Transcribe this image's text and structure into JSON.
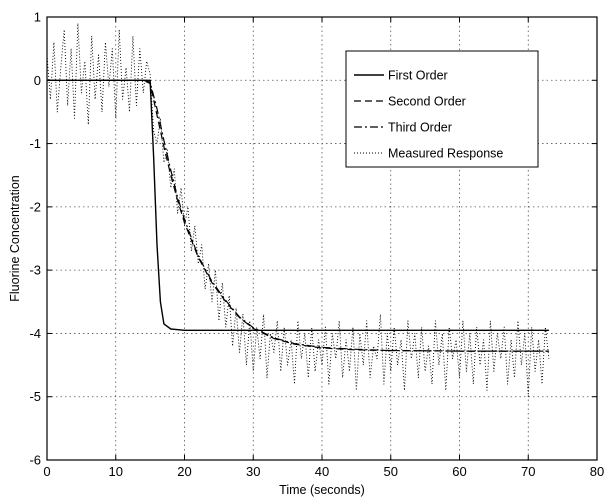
{
  "chart_data": {
    "type": "line",
    "title": "",
    "xlabel": "Time (seconds)",
    "ylabel": "Fluorine Concentration",
    "xlim": [
      0,
      80
    ],
    "ylim": [
      -6,
      1
    ],
    "xticks": [
      0,
      10,
      20,
      30,
      40,
      50,
      60,
      70,
      80
    ],
    "yticks": [
      -6,
      -5,
      -4,
      -3,
      -2,
      -1,
      0,
      1
    ],
    "x_tick_labels": [
      "0",
      "10",
      "20",
      "30",
      "40",
      "50",
      "60",
      "70",
      "80"
    ],
    "y_tick_labels": [
      "-6",
      "-5",
      "-4",
      "-3",
      "-2",
      "-1",
      "0",
      "1"
    ],
    "grid": true,
    "legend_position": "top-right",
    "series": [
      {
        "name": "First Order",
        "style": "solid",
        "x": [
          0,
          14,
          15,
          15.5,
          16,
          16.5,
          17,
          18,
          20,
          25,
          30,
          40,
          50,
          60,
          70,
          73
        ],
        "y": [
          0,
          0,
          0,
          -1.2,
          -2.6,
          -3.5,
          -3.85,
          -3.93,
          -3.95,
          -3.95,
          -3.95,
          -3.95,
          -3.95,
          -3.95,
          -3.95,
          -3.95
        ]
      },
      {
        "name": "Second Order",
        "style": "dashed",
        "x": [
          0,
          14,
          15,
          16,
          17,
          18,
          19,
          20,
          22,
          24,
          26,
          28,
          30,
          33,
          36,
          40,
          45,
          50,
          60,
          70,
          73
        ],
        "y": [
          0,
          0,
          -0.05,
          -0.55,
          -1.05,
          -1.5,
          -1.9,
          -2.25,
          -2.8,
          -3.2,
          -3.5,
          -3.75,
          -3.92,
          -4.08,
          -4.17,
          -4.23,
          -4.26,
          -4.27,
          -4.28,
          -4.28,
          -4.28
        ]
      },
      {
        "name": "Third Order",
        "style": "dashdot",
        "x": [
          0,
          14,
          15,
          16,
          17,
          18,
          19,
          20,
          22,
          24,
          26,
          28,
          30,
          33,
          36,
          40,
          45,
          50,
          60,
          70,
          73
        ],
        "y": [
          0,
          0,
          -0.03,
          -0.45,
          -0.95,
          -1.42,
          -1.85,
          -2.2,
          -2.78,
          -3.18,
          -3.48,
          -3.74,
          -3.91,
          -4.07,
          -4.16,
          -4.22,
          -4.25,
          -4.27,
          -4.28,
          -4.28,
          -4.28
        ]
      },
      {
        "name": "Measured Response",
        "style": "dotted",
        "x": [
          0,
          0.5,
          1,
          1.5,
          2,
          2.5,
          3,
          3.5,
          4,
          4.5,
          5,
          5.5,
          6,
          6.5,
          7,
          7.5,
          8,
          8.5,
          9,
          9.5,
          10,
          10.5,
          11,
          11.5,
          12,
          12.5,
          13,
          13.5,
          14,
          14.5,
          15,
          15.5,
          16,
          16.5,
          17,
          17.5,
          18,
          18.5,
          19,
          19.5,
          20,
          20.5,
          21,
          21.5,
          22,
          22.5,
          23,
          23.5,
          24,
          24.5,
          25,
          25.5,
          26,
          26.5,
          27,
          27.5,
          28,
          28.5,
          29,
          29.5,
          30,
          30.5,
          31,
          31.5,
          32,
          32.5,
          33,
          33.5,
          34,
          34.5,
          35,
          35.5,
          36,
          36.5,
          37,
          37.5,
          38,
          38.5,
          39,
          39.5,
          40,
          40.5,
          41,
          41.5,
          42,
          42.5,
          43,
          43.5,
          44,
          44.5,
          45,
          45.5,
          46,
          46.5,
          47,
          47.5,
          48,
          48.5,
          49,
          49.5,
          50,
          50.5,
          51,
          51.5,
          52,
          52.5,
          53,
          53.5,
          54,
          54.5,
          55,
          55.5,
          56,
          56.5,
          57,
          57.5,
          58,
          58.5,
          59,
          59.5,
          60,
          60.5,
          61,
          61.5,
          62,
          62.5,
          63,
          63.5,
          64,
          64.5,
          65,
          65.5,
          66,
          66.5,
          67,
          67.5,
          68,
          68.5,
          69,
          69.5,
          70,
          70.5,
          71,
          71.5,
          72,
          72.5,
          73
        ],
        "y": [
          0.4,
          -0.3,
          0.6,
          -0.5,
          0.2,
          0.8,
          -0.4,
          0.5,
          -0.6,
          0.9,
          -0.2,
          0.3,
          -0.7,
          0.7,
          -0.3,
          0.4,
          -0.5,
          0.6,
          -0.1,
          0.5,
          -0.6,
          0.8,
          -0.3,
          0.2,
          -0.5,
          0.7,
          -0.4,
          0.5,
          -0.2,
          0.3,
          0.1,
          -0.8,
          -1.0,
          -0.6,
          -1.3,
          -1.1,
          -1.7,
          -1.4,
          -2.1,
          -1.7,
          -2.3,
          -2.0,
          -2.7,
          -2.3,
          -2.9,
          -2.6,
          -3.3,
          -2.9,
          -3.5,
          -3.0,
          -3.8,
          -3.2,
          -3.9,
          -3.4,
          -4.2,
          -3.6,
          -4.3,
          -3.7,
          -4.5,
          -3.8,
          -4.6,
          -3.9,
          -4.4,
          -3.7,
          -4.7,
          -4.0,
          -4.3,
          -3.8,
          -4.6,
          -3.9,
          -4.5,
          -4.1,
          -4.8,
          -3.8,
          -4.4,
          -4.0,
          -4.7,
          -3.9,
          -4.6,
          -4.1,
          -4.5,
          -3.9,
          -4.8,
          -4.0,
          -4.4,
          -3.8,
          -4.7,
          -4.1,
          -4.6,
          -3.9,
          -4.9,
          -4.0,
          -4.5,
          -3.8,
          -4.7,
          -4.2,
          -4.4,
          -3.7,
          -4.8,
          -4.0,
          -4.6,
          -3.9,
          -4.5,
          -4.1,
          -4.9,
          -3.8,
          -4.4,
          -4.0,
          -4.7,
          -3.9,
          -4.6,
          -4.2,
          -4.8,
          -3.8,
          -4.5,
          -4.0,
          -4.9,
          -3.9,
          -4.4,
          -4.1,
          -4.7,
          -3.8,
          -4.6,
          -4.0,
          -4.8,
          -3.9,
          -4.5,
          -4.1,
          -4.9,
          -3.8,
          -4.6,
          -4.0,
          -4.4,
          -3.9,
          -4.8,
          -4.1,
          -4.7,
          -3.8,
          -4.5,
          -4.0,
          -5.0,
          -3.9,
          -4.6,
          -4.1,
          -4.8,
          -3.9,
          -4.4
        ]
      }
    ]
  },
  "colors": {
    "background": "#ffffff",
    "axes": "#000000",
    "grid": "#555555",
    "line": "#000000"
  }
}
